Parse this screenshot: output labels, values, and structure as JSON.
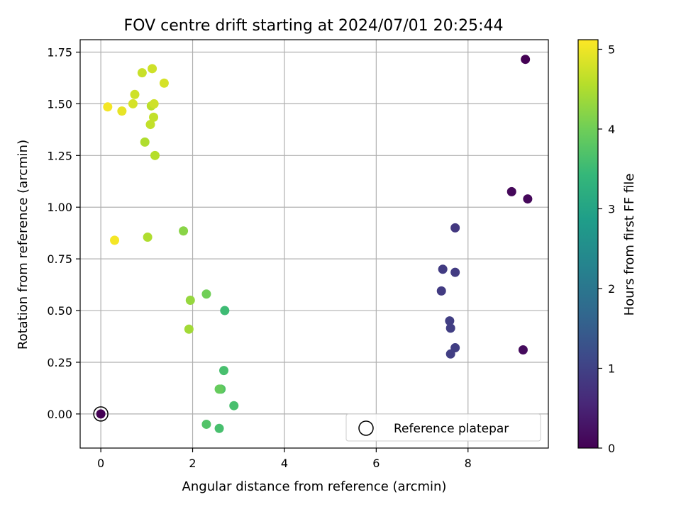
{
  "chart_data": {
    "type": "scatter",
    "title": "FOV centre drift starting at 2024/07/01 20:25:44",
    "xlabel": "Angular distance from reference (arcmin)",
    "ylabel": "Rotation from reference (arcmin)",
    "xlim": [
      -0.45,
      9.75
    ],
    "ylim": [
      -0.165,
      1.81
    ],
    "grid": true,
    "colormap": "viridis",
    "xticks": [
      0,
      2,
      4,
      6,
      8
    ],
    "xtick_labels": [
      "0",
      "2",
      "4",
      "6",
      "8"
    ],
    "yticks": [
      0.0,
      0.25,
      0.5,
      0.75,
      1.0,
      1.25,
      1.5,
      1.75
    ],
    "ytick_labels": [
      "0.00",
      "0.25",
      "0.50",
      "0.75",
      "1.00",
      "1.25",
      "1.50",
      "1.75"
    ],
    "colorbar": {
      "label": "Hours from first FF file",
      "min": 0,
      "max": 5.12,
      "ticks": [
        0,
        1,
        2,
        3,
        4,
        5
      ],
      "tick_labels": [
        "0",
        "1",
        "2",
        "3",
        "4",
        "5"
      ]
    },
    "legend": {
      "position": "lower-right",
      "label": "Reference platepar"
    },
    "reference_point": {
      "x": 0.0,
      "y": 0.0,
      "hours": 0.0
    },
    "points": [
      {
        "x": 9.25,
        "y": 1.715,
        "hours": 0.0
      },
      {
        "x": 8.95,
        "y": 1.075,
        "hours": 0.1
      },
      {
        "x": 9.3,
        "y": 1.04,
        "hours": 0.1
      },
      {
        "x": 9.2,
        "y": 0.31,
        "hours": 0.15
      },
      {
        "x": 7.72,
        "y": 0.9,
        "hours": 0.85
      },
      {
        "x": 7.45,
        "y": 0.7,
        "hours": 0.9
      },
      {
        "x": 7.72,
        "y": 0.685,
        "hours": 0.9
      },
      {
        "x": 7.42,
        "y": 0.595,
        "hours": 0.9
      },
      {
        "x": 7.6,
        "y": 0.45,
        "hours": 0.95
      },
      {
        "x": 7.62,
        "y": 0.415,
        "hours": 0.95
      },
      {
        "x": 7.72,
        "y": 0.32,
        "hours": 0.95
      },
      {
        "x": 7.62,
        "y": 0.29,
        "hours": 0.95
      },
      {
        "x": 2.7,
        "y": 0.5,
        "hours": 3.5
      },
      {
        "x": 2.68,
        "y": 0.21,
        "hours": 3.6
      },
      {
        "x": 2.9,
        "y": 0.04,
        "hours": 3.6
      },
      {
        "x": 2.62,
        "y": 0.12,
        "hours": 3.7
      },
      {
        "x": 2.3,
        "y": -0.05,
        "hours": 3.7
      },
      {
        "x": 2.58,
        "y": -0.07,
        "hours": 3.6
      },
      {
        "x": 2.58,
        "y": 0.12,
        "hours": 3.9
      },
      {
        "x": 2.3,
        "y": 0.58,
        "hours": 4.0
      },
      {
        "x": 1.95,
        "y": 0.55,
        "hours": 4.3
      },
      {
        "x": 1.92,
        "y": 0.41,
        "hours": 4.4
      },
      {
        "x": 1.8,
        "y": 0.885,
        "hours": 4.2
      },
      {
        "x": 1.02,
        "y": 0.855,
        "hours": 4.5
      },
      {
        "x": 0.3,
        "y": 0.84,
        "hours": 5.05
      },
      {
        "x": 0.96,
        "y": 1.315,
        "hours": 4.5
      },
      {
        "x": 1.18,
        "y": 1.25,
        "hours": 4.55
      },
      {
        "x": 1.08,
        "y": 1.4,
        "hours": 4.65
      },
      {
        "x": 1.15,
        "y": 1.435,
        "hours": 4.65
      },
      {
        "x": 1.1,
        "y": 1.49,
        "hours": 4.6
      },
      {
        "x": 1.16,
        "y": 1.5,
        "hours": 4.75
      },
      {
        "x": 0.7,
        "y": 1.5,
        "hours": 4.8
      },
      {
        "x": 0.46,
        "y": 1.465,
        "hours": 4.95
      },
      {
        "x": 0.15,
        "y": 1.485,
        "hours": 5.05
      },
      {
        "x": 0.74,
        "y": 1.545,
        "hours": 4.75
      },
      {
        "x": 1.38,
        "y": 1.6,
        "hours": 4.8
      },
      {
        "x": 0.9,
        "y": 1.65,
        "hours": 4.7
      },
      {
        "x": 1.12,
        "y": 1.67,
        "hours": 4.75
      }
    ]
  }
}
